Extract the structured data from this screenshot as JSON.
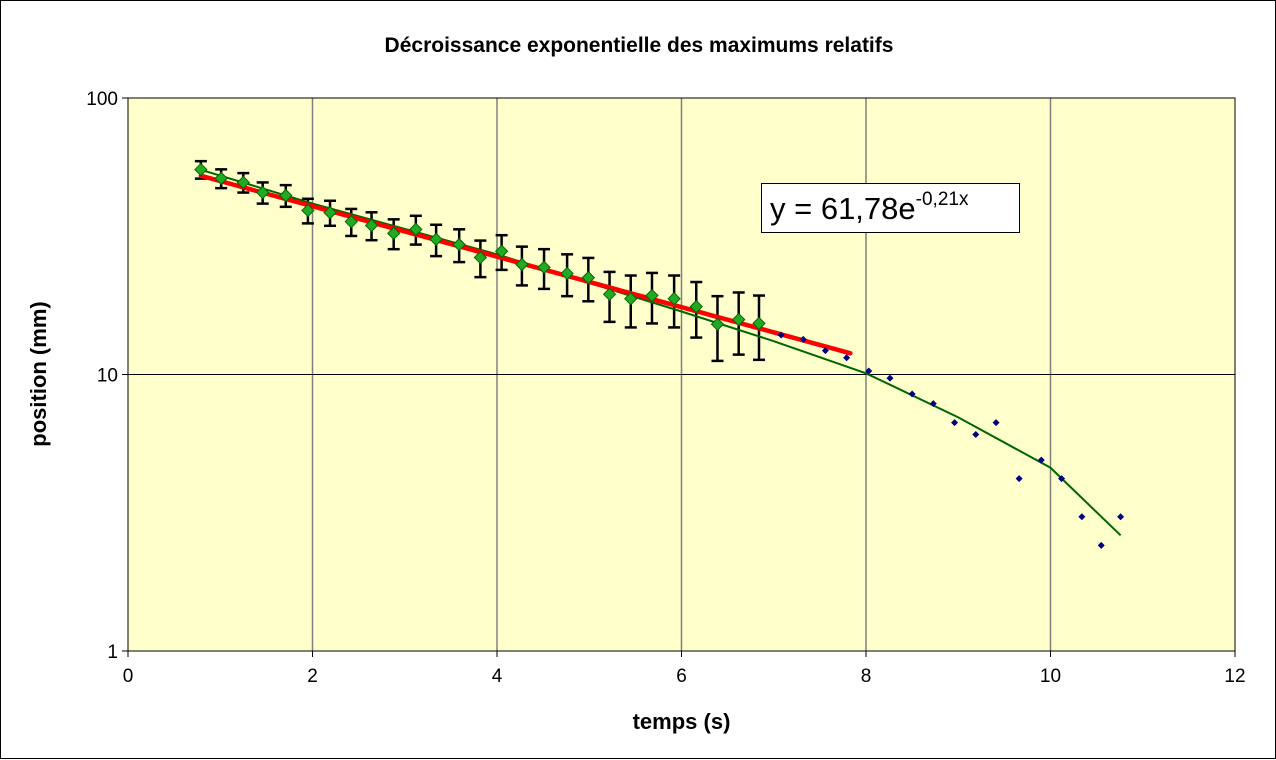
{
  "chart_data": {
    "type": "scatter",
    "title": "Décroissance exponentielle des maximums relatifs",
    "xlabel": "temps  (s)",
    "ylabel": "position  (mm)",
    "xlim": [
      0,
      12
    ],
    "ylim": [
      1,
      100
    ],
    "yscale": "log",
    "grid": true,
    "xticks": [
      "0",
      "2",
      "4",
      "6",
      "8",
      "10",
      "12"
    ],
    "yticks": [
      "1",
      "10",
      "100"
    ],
    "colors": {
      "plot_bg": "#FFFFCC",
      "measured": "#22AA22",
      "extra": "#000080",
      "fit": "#FF0000",
      "trend": "#006600"
    },
    "series": [
      {
        "marker": "diamond",
        "color": "#22AA22",
        "error": 4,
        "x": [
          0.79,
          1.01,
          1.25,
          1.46,
          1.71,
          1.95,
          2.19,
          2.42,
          2.64,
          2.88,
          3.12,
          3.34,
          3.59,
          3.82,
          4.05,
          4.27,
          4.51,
          4.76,
          4.99,
          5.22,
          5.45,
          5.68,
          5.92,
          6.16,
          6.39,
          6.62,
          6.84
        ],
        "y": [
          55.1,
          51.2,
          49.5,
          45.5,
          44.4,
          39.2,
          38.5,
          35.7,
          34.6,
          32.4,
          33.5,
          30.8,
          29.5,
          26.5,
          27.9,
          25.0,
          24.4,
          23.2,
          22.4,
          19.5,
          18.8,
          19.3,
          18.8,
          17.6,
          15.2,
          15.8,
          15.3
        ]
      },
      {
        "marker": "small-diamond",
        "color": "#000080",
        "x": [
          7.08,
          7.32,
          7.56,
          7.79,
          8.03,
          8.26,
          8.5,
          8.73,
          8.96,
          9.19,
          9.41,
          9.66,
          9.9,
          10.12,
          10.34,
          10.55,
          10.76
        ],
        "y": [
          13.9,
          13.4,
          12.2,
          11.5,
          10.3,
          9.7,
          8.5,
          7.85,
          6.7,
          6.07,
          6.7,
          4.2,
          4.9,
          4.2,
          3.06,
          2.41,
          3.06
        ]
      },
      {
        "type": "line",
        "color": "#006600",
        "x": [
          0.79,
          2,
          4,
          6,
          7,
          8,
          9,
          10,
          10.76
        ],
        "y": [
          55,
          41.5,
          27.2,
          16.9,
          13.2,
          10.1,
          7.0,
          4.6,
          2.62
        ]
      },
      {
        "type": "fit",
        "color": "#FF0000",
        "a": 61.78,
        "b": -0.21,
        "xrange": [
          0.79,
          7.83
        ]
      }
    ],
    "annotation": {
      "text": "y = 61,78e",
      "exponent": "-0,21x"
    }
  }
}
